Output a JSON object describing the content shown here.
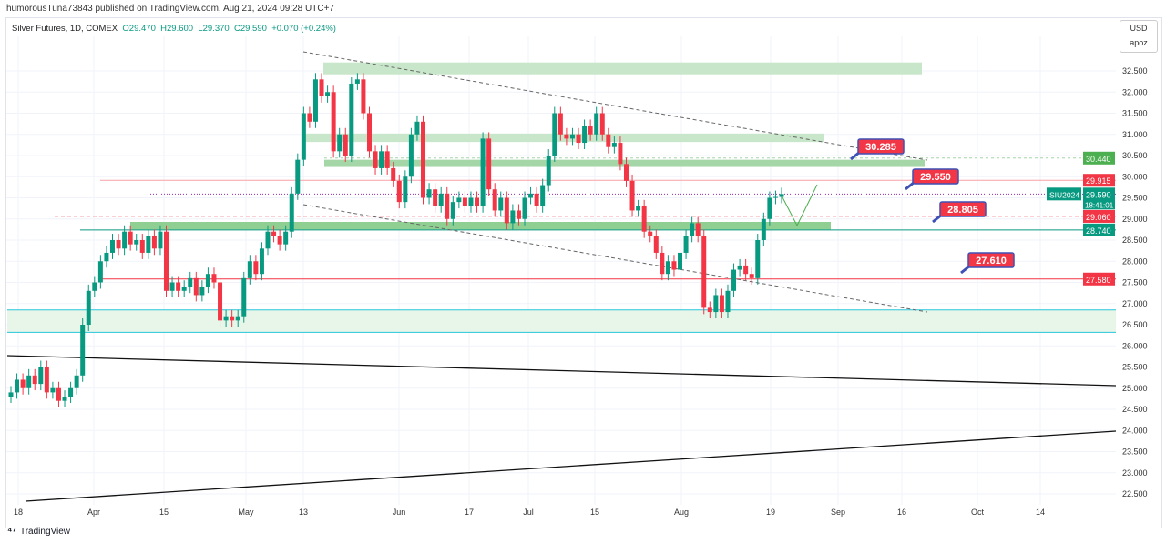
{
  "header": {
    "published": "humorousTuna73843 published on TradingView.com, Aug 21, 2024 09:28 UTC+7"
  },
  "legend": {
    "symbol": "Silver Futures, 1D, COMEX",
    "open": "O29.470",
    "high": "H29.600",
    "low": "L29.370",
    "close": "C29.590",
    "change": "+0.070 (+0.24%)"
  },
  "currency": {
    "code": "USD",
    "unit": "apoz"
  },
  "footer": {
    "brand": "TradingView"
  },
  "colors": {
    "up": "#089981",
    "down": "#f23645",
    "zone": "#c8e6c9",
    "cyan": "#26c6da"
  },
  "chart_data": {
    "type": "candlestick",
    "title": "Silver Futures, 1D, COMEX",
    "ylim": [
      22.25,
      33.2
    ],
    "y_ticks": [
      "32.500",
      "32.000",
      "31.500",
      "31.000",
      "30.500",
      "30.000",
      "29.500",
      "29.000",
      "28.500",
      "28.000",
      "27.500",
      "27.000",
      "26.500",
      "26.000",
      "25.500",
      "25.000",
      "24.500",
      "24.000",
      "23.500",
      "23.000",
      "22.500"
    ],
    "x_ticks": [
      "18",
      "Apr",
      "15",
      "May",
      "13",
      "Jun",
      "17",
      "Jul",
      "15",
      "Aug",
      "19",
      "Sep",
      "16",
      "Oct",
      "14"
    ],
    "closes": [
      24.9,
      25.2,
      25.0,
      25.3,
      25.1,
      25.5,
      24.9,
      25.0,
      24.7,
      24.8,
      25.0,
      25.3,
      26.5,
      27.3,
      27.5,
      28.0,
      28.2,
      28.5,
      28.3,
      28.7,
      28.4,
      28.5,
      28.2,
      28.6,
      28.3,
      28.7,
      27.3,
      27.5,
      27.3,
      27.4,
      27.6,
      27.2,
      27.4,
      27.7,
      27.5,
      26.6,
      26.7,
      26.6,
      26.7,
      27.6,
      28.0,
      27.7,
      28.3,
      28.7,
      28.6,
      28.4,
      28.7,
      29.6,
      30.4,
      31.5,
      31.3,
      32.3,
      31.9,
      32.0,
      30.6,
      31.0,
      30.5,
      32.2,
      32.3,
      31.5,
      30.6,
      30.2,
      30.6,
      30.2,
      29.9,
      29.4,
      30.0,
      31.0,
      31.3,
      29.5,
      29.7,
      29.3,
      29.6,
      29.0,
      29.4,
      29.5,
      29.3,
      29.5,
      29.3,
      30.9,
      29.7,
      29.2,
      29.5,
      28.9,
      29.2,
      29.0,
      29.5,
      29.6,
      29.3,
      29.8,
      30.5,
      31.5,
      31.0,
      30.9,
      31.0,
      30.8,
      31.2,
      31.0,
      31.5,
      31.0,
      30.7,
      30.8,
      30.3,
      29.9,
      29.2,
      29.3,
      28.7,
      28.6,
      28.2,
      27.7,
      28.0,
      27.8,
      28.2,
      28.6,
      28.9,
      28.6,
      26.9,
      26.8,
      27.2,
      26.8,
      27.3,
      27.8,
      27.9,
      27.7,
      27.6,
      28.5,
      29.0,
      29.5,
      29.52,
      29.59
    ],
    "price_labels": [
      {
        "value": "30.440",
        "kind": "green"
      },
      {
        "value": "29.915",
        "kind": "red"
      },
      {
        "value": "29.590",
        "kind": "last",
        "symbol": "SIU2024",
        "countdown": "18:41:01"
      },
      {
        "value": "29.060",
        "kind": "red"
      },
      {
        "value": "28.740",
        "kind": "teal"
      },
      {
        "value": "27.580",
        "kind": "red"
      }
    ],
    "annotations": [
      "30.285",
      "29.550",
      "28.805",
      "27.610"
    ]
  }
}
